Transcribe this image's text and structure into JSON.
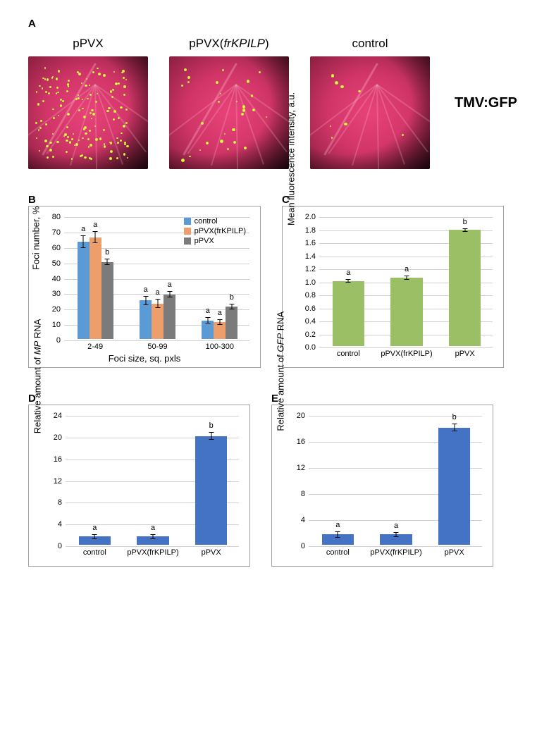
{
  "panelA": {
    "label": "A",
    "leaves": [
      {
        "title": "pPVX",
        "dots_density": "high"
      },
      {
        "title": "pPVX(frKPILP)",
        "title_style": "part-italic",
        "dots_density": "low"
      },
      {
        "title": "control",
        "dots_density": "very-low"
      }
    ],
    "side_label": "TMV:GFP"
  },
  "panelB": {
    "label": "B",
    "type": "grouped-bar",
    "ylabel": "Foci number, %",
    "xlabel": "Foci size, sq. pxls",
    "ylim": [
      0,
      80
    ],
    "ytick_step": 10,
    "categories": [
      "2-49",
      "50-99",
      "100-300"
    ],
    "series": [
      {
        "name": "control",
        "color": "#5b9bd5",
        "values": [
          63,
          25,
          12
        ],
        "err": [
          4,
          3,
          2
        ],
        "sig": [
          "a",
          "a",
          "a"
        ]
      },
      {
        "name": "pPVX(frKPILP)",
        "color": "#ed9e6a",
        "values": [
          66,
          23,
          11
        ],
        "err": [
          4,
          3,
          2
        ],
        "sig": [
          "a",
          "a",
          "a"
        ]
      },
      {
        "name": "pPVX",
        "color": "#7b7b7b",
        "values": [
          50,
          29,
          21
        ],
        "err": [
          2,
          2,
          2
        ],
        "sig": [
          "b",
          "a",
          "b"
        ]
      }
    ],
    "legend_pos": "top-right"
  },
  "panelC": {
    "label": "C",
    "type": "bar",
    "ylabel": "Mean fluorescence intensity, a.u.",
    "ylim": [
      0,
      2.0
    ],
    "ytick_step": 0.2,
    "categories": [
      "control",
      "pPVX(frKPILP)",
      "pPVX"
    ],
    "values": [
      1.0,
      1.05,
      1.78
    ],
    "err": [
      0.03,
      0.03,
      0.03
    ],
    "sig": [
      "a",
      "a",
      "b"
    ],
    "bar_color": "#9bbf65"
  },
  "panelD": {
    "label": "D",
    "type": "bar",
    "ylabel": "Relative amount of MP RNA",
    "ylabel_italic_part": "MP",
    "ylim": [
      0,
      24
    ],
    "ytick_step": 4,
    "categories": [
      "control",
      "pPVX(frKPILP)",
      "pPVX"
    ],
    "values": [
      1.5,
      1.5,
      20
    ],
    "err": [
      0.5,
      0.5,
      0.7
    ],
    "sig": [
      "a",
      "a",
      "b"
    ],
    "bar_color": "#4472c4"
  },
  "panelE": {
    "label": "E",
    "type": "bar",
    "ylabel": "Relative amount of GFP RNA",
    "ylabel_italic_part": "GFP",
    "ylim": [
      0,
      20
    ],
    "ytick_step": 4,
    "categories": [
      "control",
      "pPVX(frKPILP)",
      "pPVX"
    ],
    "values": [
      1.6,
      1.6,
      18
    ],
    "err": [
      0.5,
      0.4,
      0.6
    ],
    "sig": [
      "a",
      "a",
      "b"
    ],
    "bar_color": "#4472c4"
  },
  "colors": {
    "grid": "#d0d0d0",
    "axis": "#808080",
    "leaf_bg": "#d13568"
  }
}
